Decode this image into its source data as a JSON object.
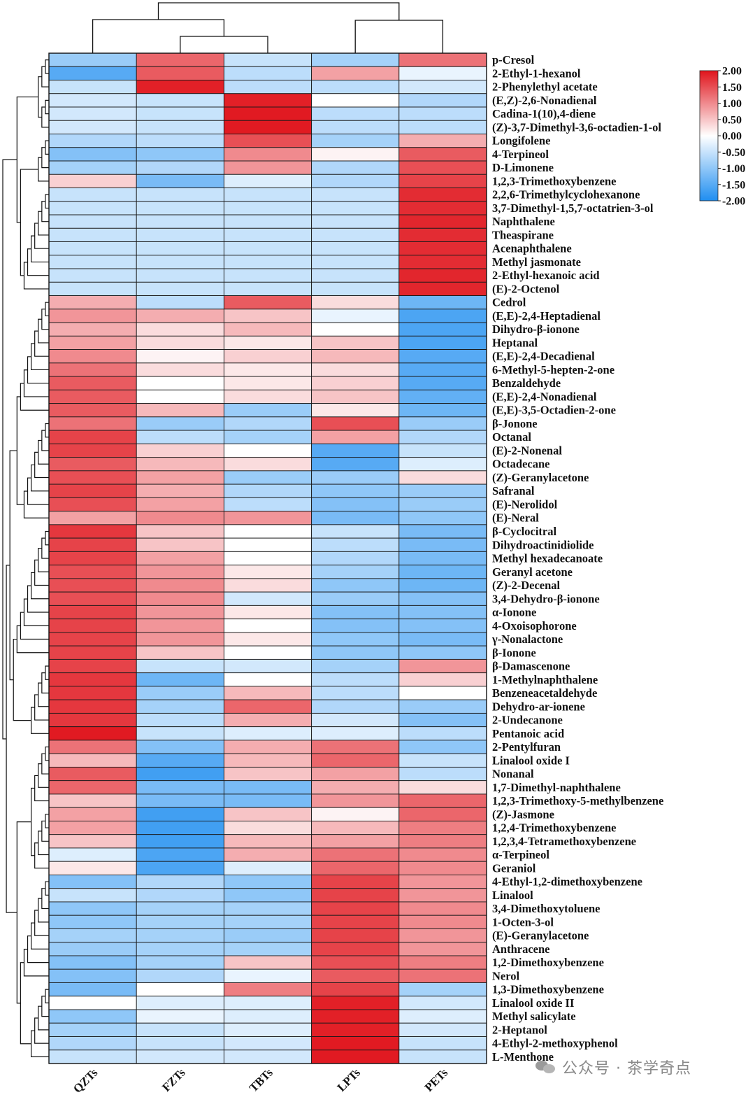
{
  "chart_data": {
    "type": "heatmap",
    "title": "",
    "xlabel": "",
    "ylabel": "",
    "columns": [
      "QZTs",
      "FZTs",
      "TBTs",
      "LPTs",
      "PETs"
    ],
    "rows": [
      "p-Cresol",
      "2-Ethyl-1-hexanol",
      "2-Phenylethyl acetate",
      "(E,Z)-2,6-Nonadienal",
      "Cadina-1(10),4-diene",
      "(Z)-3,7-Dimethyl-3,6-octadien-1-ol",
      "Longifolene",
      "4-Terpineol",
      "D-Limonene",
      "1,2,3-Trimethoxybenzene",
      "2,2,6-Trimethylcyclohexanone",
      "3,7-Dimethyl-1,5,7-octatrien-3-ol",
      "Naphthalene",
      "Theaspirane",
      "Acenaphthalene",
      "Methyl jasmonate",
      "2-Ethyl-hexanoic acid",
      "(E)-2-Octenol",
      "Cedrol",
      "(E,E)-2,4-Heptadienal",
      "Dihydro-β-ionone",
      "Heptanal",
      "(E,E)-2,4-Decadienal",
      "6-Methyl-5-hepten-2-one",
      "Benzaldehyde",
      "(E,E)-2,4-Nonadienal",
      "(E,E)-3,5-Octadien-2-one",
      "β-Jonone",
      "Octanal",
      "(E)-2-Nonenal",
      "Octadecane",
      "(Z)-Geranylacetone",
      "Safranal",
      "(E)-Nerolidol",
      "(E)-Neral",
      "β-Cyclocitral",
      "Dihydroactinidiolide",
      "Methyl hexadecanoate",
      "Geranyl acetone",
      "(Z)-2-Decenal",
      "3,4-Dehydro-β-ionone",
      "α-Ionone",
      "4-Oxoisophorone",
      "γ-Nonalactone",
      "β-Ionone",
      "β-Damascenone",
      "1-Methylnaphthalene",
      "Benzeneacetaldehyde",
      "Dehydro-ar-ionene",
      "2-Undecanone",
      "Pentanoic acid",
      "2-Pentylfuran",
      "Linalool oxide I",
      "Nonanal",
      "1,7-Dimethyl-naphthalene",
      "1,2,3-Trimethoxy-5-methylbenzene",
      "(Z)-Jasmone",
      "1,2,4-Trimethoxybenzene",
      "1,2,3,4-Tetramethoxybenzene",
      "α-Terpineol",
      "Geraniol",
      "4-Ethyl-1,2-dimethoxybenzene",
      "Linalool",
      "3,4-Dimethoxytoluene",
      "1-Octen-3-ol",
      "(E)-Geranylacetone",
      "Anthracene",
      "1,2-Dimethoxybenzene",
      "Nerol",
      "1,3-Dimethoxybenzene",
      "Linalool oxide II",
      "Methyl salicylate",
      "2-Heptanol",
      "4-Ethyl-2-methoxyphenol",
      "L-Menthone"
    ],
    "values": [
      [
        -0.9,
        1.3,
        -0.5,
        -0.8,
        1.2
      ],
      [
        -1.5,
        1.4,
        -0.6,
        0.8,
        -0.2
      ],
      [
        -0.5,
        1.9,
        -0.6,
        -0.6,
        -0.4
      ],
      [
        -0.4,
        -0.5,
        1.9,
        0.0,
        -0.7
      ],
      [
        -0.4,
        -0.5,
        1.95,
        -0.6,
        -0.6
      ],
      [
        -0.4,
        -0.5,
        1.95,
        -0.6,
        -0.6
      ],
      [
        -0.7,
        -0.6,
        1.5,
        -0.8,
        0.7
      ],
      [
        -1.1,
        -1.0,
        1.0,
        0.1,
        1.4
      ],
      [
        -0.8,
        -0.7,
        0.9,
        -0.7,
        1.5
      ],
      [
        0.4,
        -1.2,
        -0.3,
        -0.7,
        1.6
      ],
      [
        -0.5,
        -0.5,
        -0.5,
        -0.5,
        1.8
      ],
      [
        -0.5,
        -0.5,
        -0.5,
        -0.5,
        1.8
      ],
      [
        -0.5,
        -0.5,
        -0.5,
        -0.5,
        1.85
      ],
      [
        -0.5,
        -0.5,
        -0.5,
        -0.5,
        1.8
      ],
      [
        -0.5,
        -0.5,
        -0.5,
        -0.5,
        1.8
      ],
      [
        -0.5,
        -0.5,
        -0.5,
        -0.5,
        1.8
      ],
      [
        -0.5,
        -0.5,
        -0.5,
        -0.5,
        1.85
      ],
      [
        -0.5,
        -0.5,
        -0.5,
        -0.5,
        1.85
      ],
      [
        0.7,
        -0.6,
        1.4,
        0.3,
        -1.3
      ],
      [
        0.9,
        0.7,
        0.5,
        -0.2,
        -1.6
      ],
      [
        0.7,
        0.3,
        0.6,
        0.0,
        -1.6
      ],
      [
        0.8,
        0.3,
        0.2,
        0.5,
        -1.6
      ],
      [
        1.0,
        0.1,
        0.4,
        0.6,
        -1.5
      ],
      [
        1.2,
        0.3,
        0.2,
        0.3,
        -1.5
      ],
      [
        1.4,
        0.0,
        0.2,
        0.4,
        -1.5
      ],
      [
        1.4,
        0.0,
        0.3,
        0.5,
        -1.4
      ],
      [
        1.4,
        0.6,
        -0.9,
        0.2,
        -1.3
      ],
      [
        1.2,
        -0.9,
        -0.7,
        1.5,
        -0.9
      ],
      [
        1.6,
        -0.6,
        -0.8,
        0.8,
        -0.7
      ],
      [
        1.6,
        0.4,
        0.0,
        -1.5,
        -0.5
      ],
      [
        1.4,
        0.6,
        0.3,
        -1.5,
        -0.3
      ],
      [
        1.5,
        0.8,
        -0.9,
        -0.9,
        0.3
      ],
      [
        1.6,
        0.7,
        -0.7,
        -1.0,
        -0.9
      ],
      [
        1.5,
        0.8,
        -0.6,
        -1.1,
        -0.9
      ],
      [
        0.8,
        1.0,
        0.9,
        -1.2,
        -1.0
      ],
      [
        1.7,
        0.5,
        0.0,
        -0.5,
        -1.2
      ],
      [
        1.6,
        0.5,
        0.0,
        -0.6,
        -1.2
      ],
      [
        1.6,
        0.8,
        0.0,
        -0.7,
        -1.2
      ],
      [
        1.5,
        0.9,
        0.2,
        -0.8,
        -1.3
      ],
      [
        1.5,
        1.0,
        0.3,
        -1.0,
        -1.3
      ],
      [
        1.5,
        1.0,
        -0.4,
        -0.9,
        -1.1
      ],
      [
        1.6,
        0.9,
        0.2,
        -1.1,
        -1.1
      ],
      [
        1.6,
        0.9,
        0.0,
        -1.1,
        -1.1
      ],
      [
        1.6,
        0.9,
        0.2,
        -1.0,
        -1.2
      ],
      [
        1.6,
        0.5,
        0.0,
        -1.0,
        -1.0
      ],
      [
        1.6,
        -0.5,
        -0.4,
        -0.8,
        0.9
      ],
      [
        1.7,
        -1.3,
        0.0,
        -0.6,
        0.4
      ],
      [
        1.7,
        -0.9,
        0.6,
        -0.6,
        0.0
      ],
      [
        1.7,
        -0.8,
        1.3,
        -0.7,
        -0.9
      ],
      [
        1.7,
        -0.6,
        0.7,
        -0.4,
        -1.1
      ],
      [
        1.95,
        -0.5,
        -0.3,
        -0.3,
        -0.6
      ],
      [
        1.2,
        -1.1,
        0.7,
        1.2,
        -1.0
      ],
      [
        0.6,
        -1.5,
        0.6,
        1.3,
        -0.5
      ],
      [
        1.4,
        -1.7,
        0.5,
        0.8,
        -0.6
      ],
      [
        1.3,
        -1.2,
        -1.2,
        0.7,
        0.3
      ],
      [
        0.5,
        -1.2,
        -1.2,
        0.9,
        1.3
      ],
      [
        0.8,
        -1.7,
        0.5,
        0.1,
        1.3
      ],
      [
        0.8,
        -1.7,
        0.3,
        0.6,
        1.1
      ],
      [
        0.5,
        -1.7,
        0.6,
        0.8,
        1.1
      ],
      [
        -0.3,
        -1.6,
        0.7,
        1.2,
        1.0
      ],
      [
        0.2,
        -1.6,
        -0.3,
        1.3,
        1.0
      ],
      [
        -1.1,
        -0.7,
        -1.0,
        1.6,
        0.9
      ],
      [
        -0.5,
        -0.7,
        -1.0,
        1.6,
        0.9
      ],
      [
        -1.0,
        -0.8,
        -0.8,
        1.6,
        1.0
      ],
      [
        -1.0,
        -0.8,
        -0.8,
        1.6,
        1.0
      ],
      [
        -0.8,
        -0.8,
        -0.9,
        1.6,
        0.9
      ],
      [
        -0.9,
        -0.8,
        -0.8,
        1.6,
        0.9
      ],
      [
        -1.1,
        -0.8,
        0.5,
        1.5,
        1.1
      ],
      [
        -1.1,
        -0.7,
        -0.2,
        1.4,
        1.2
      ],
      [
        -1.2,
        0.0,
        1.1,
        1.6,
        -0.8
      ],
      [
        0.0,
        -0.3,
        -0.3,
        1.9,
        -0.4
      ],
      [
        -1.0,
        -0.2,
        -0.3,
        1.9,
        -0.3
      ],
      [
        -0.8,
        -0.5,
        -0.3,
        1.9,
        -0.4
      ],
      [
        -0.7,
        -0.5,
        -0.4,
        1.95,
        -0.5
      ],
      [
        -0.5,
        -0.4,
        -0.4,
        1.95,
        -0.5
      ]
    ],
    "colorbar": {
      "min": -2.0,
      "max": 2.0,
      "ticks": [
        "2.00",
        "1.50",
        "1.00",
        "0.50",
        "0.00",
        "-0.50",
        "-1.00",
        "-1.50",
        "-2.00"
      ],
      "colors": {
        "high": "#e0141c",
        "mid": "#ffffff",
        "low": "#1f8ef0"
      }
    },
    "row_dendrogram": true,
    "column_dendrogram": true,
    "grid": true
  },
  "watermark": {
    "text": "公众号 · 茶学奇点",
    "icon": "wechat-icon"
  }
}
